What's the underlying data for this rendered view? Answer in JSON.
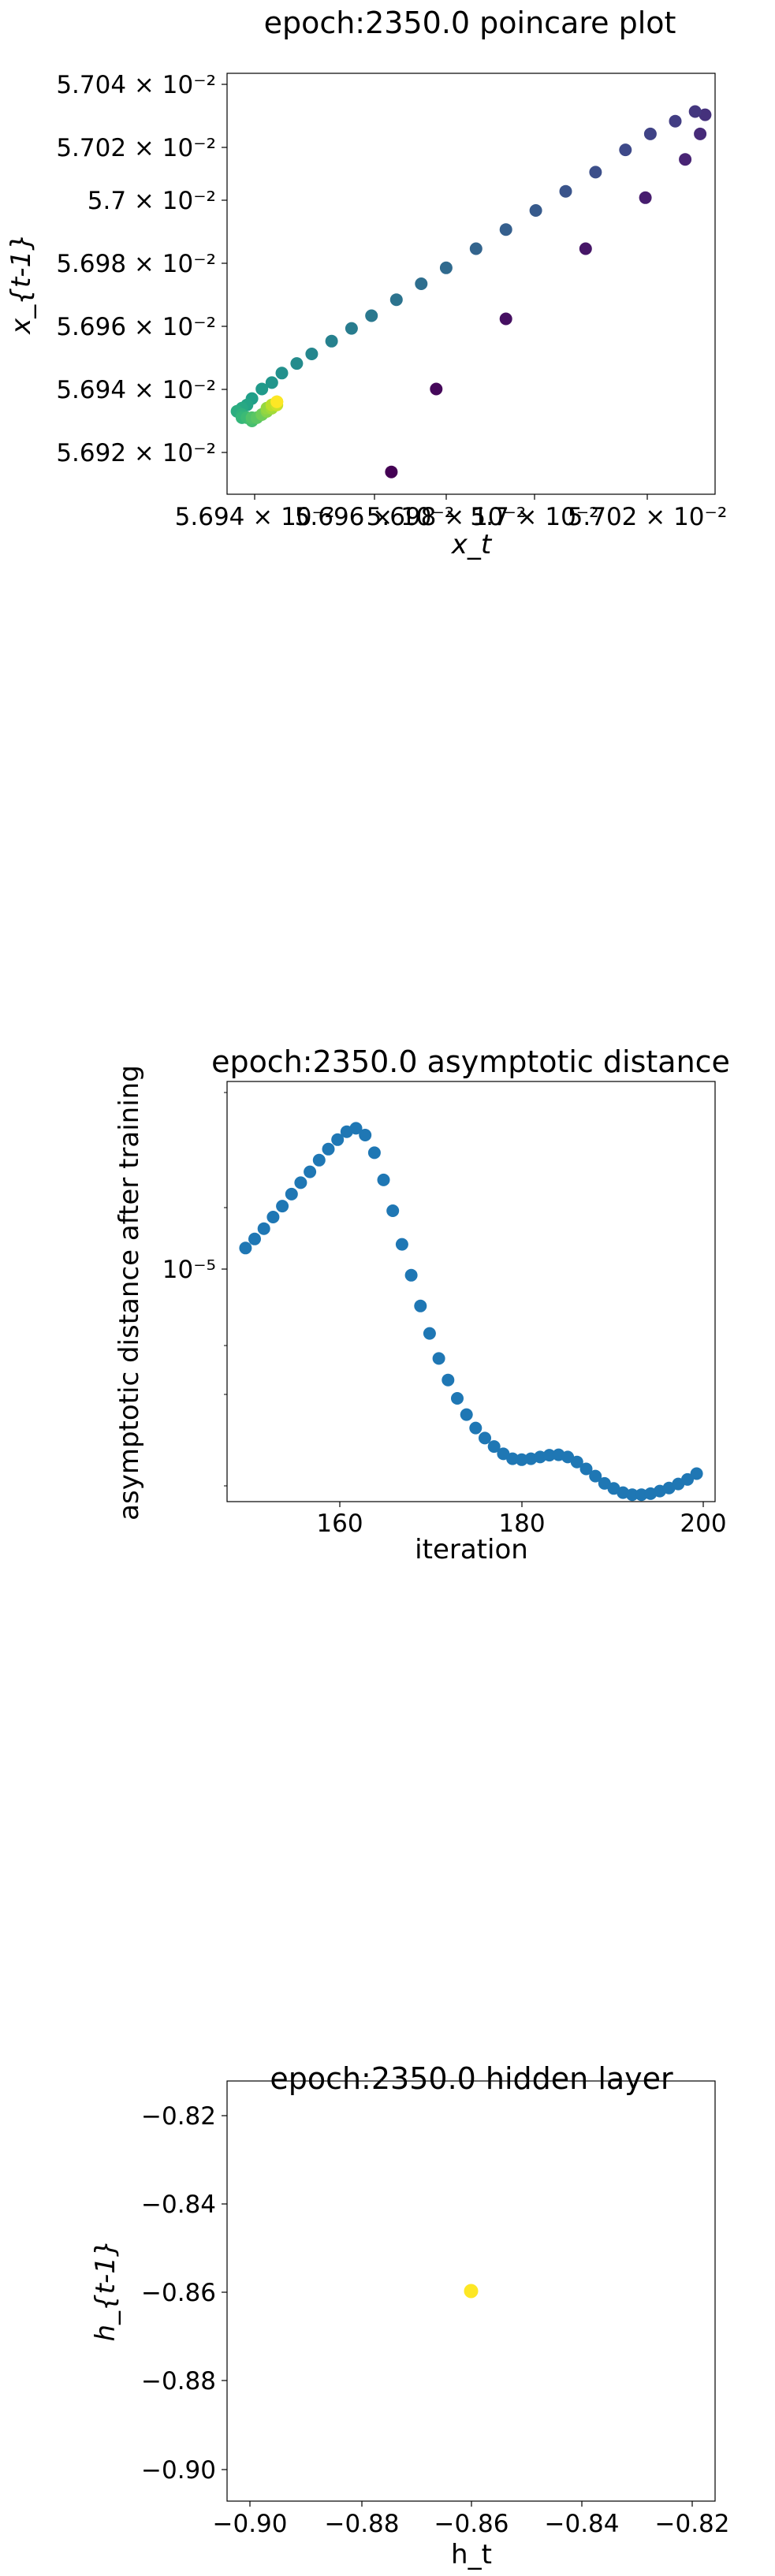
{
  "charts": [
    {
      "type": "scatter",
      "title": "epoch:2350.0 poincare plot",
      "xlabel": "x_t",
      "ylabel": "x_{t-1}",
      "colormap": "viridis",
      "xticks": [
        "5.694 × 10⁻²",
        "5.696 × 10⁻²",
        "5.698 × 10⁻²",
        "5.7 × 10⁻²",
        "5.702 × 10⁻²"
      ],
      "yticks": [
        "5.704 × 10⁻²",
        "5.702 × 10⁻²",
        "5.7 × 10⁻²",
        "5.698 × 10⁻²",
        "5.696 × 10⁻²",
        "5.694 × 10⁻²",
        "5.692 × 10⁻²"
      ]
    },
    {
      "type": "scatter",
      "title": "epoch:2350.0 asymptotic distance",
      "xlabel": "iteration",
      "ylabel": "asymptotic distance after training",
      "yscale": "log",
      "color": "#1f77b4",
      "xticks": [
        "160",
        "180",
        "200"
      ],
      "yticks": [
        "10⁻⁵"
      ]
    },
    {
      "type": "scatter",
      "title": "epoch:2350.0 hidden layer",
      "xlabel": "h_t",
      "ylabel": "h_{t-1}",
      "color": "#fde725",
      "xticks": [
        "−0.90",
        "−0.88",
        "−0.86",
        "−0.84",
        "−0.82"
      ],
      "yticks": [
        "−0.82",
        "−0.84",
        "−0.86",
        "−0.88",
        "−0.90"
      ]
    }
  ],
  "chart_data": [
    {
      "type": "scatter",
      "xlim": [
        0.056938,
        0.057036
      ],
      "ylim": [
        0.056914,
        0.057046
      ],
      "grid": false,
      "legend": "none",
      "points": [
        {
          "x": 0.056971,
          "y": 0.056921,
          "c": 0.0
        },
        {
          "x": 0.05698,
          "y": 0.056947,
          "c": 0.02
        },
        {
          "x": 0.056994,
          "y": 0.056969,
          "c": 0.04
        },
        {
          "x": 0.05701,
          "y": 0.056991,
          "c": 0.06
        },
        {
          "x": 0.057022,
          "y": 0.057007,
          "c": 0.08
        },
        {
          "x": 0.05703,
          "y": 0.057019,
          "c": 0.1
        },
        {
          "x": 0.057033,
          "y": 0.057027,
          "c": 0.12
        },
        {
          "x": 0.057034,
          "y": 0.057033,
          "c": 0.14
        },
        {
          "x": 0.057032,
          "y": 0.057034,
          "c": 0.16
        },
        {
          "x": 0.057028,
          "y": 0.057031,
          "c": 0.18
        },
        {
          "x": 0.057023,
          "y": 0.057027,
          "c": 0.2
        },
        {
          "x": 0.057018,
          "y": 0.057022,
          "c": 0.22
        },
        {
          "x": 0.057012,
          "y": 0.057015,
          "c": 0.24
        },
        {
          "x": 0.057006,
          "y": 0.057009,
          "c": 0.26
        },
        {
          "x": 0.057,
          "y": 0.057003,
          "c": 0.28
        },
        {
          "x": 0.056994,
          "y": 0.056997,
          "c": 0.3
        },
        {
          "x": 0.056988,
          "y": 0.056991,
          "c": 0.32
        },
        {
          "x": 0.056982,
          "y": 0.056985,
          "c": 0.34
        },
        {
          "x": 0.056977,
          "y": 0.05698,
          "c": 0.36
        },
        {
          "x": 0.056972,
          "y": 0.056975,
          "c": 0.38
        },
        {
          "x": 0.056967,
          "y": 0.05697,
          "c": 0.4
        },
        {
          "x": 0.056963,
          "y": 0.056966,
          "c": 0.42
        },
        {
          "x": 0.056959,
          "y": 0.056962,
          "c": 0.44
        },
        {
          "x": 0.056955,
          "y": 0.056958,
          "c": 0.46
        },
        {
          "x": 0.056952,
          "y": 0.056955,
          "c": 0.48
        },
        {
          "x": 0.056949,
          "y": 0.056952,
          "c": 0.5
        },
        {
          "x": 0.056947,
          "y": 0.056949,
          "c": 0.52
        },
        {
          "x": 0.056945,
          "y": 0.056947,
          "c": 0.54
        },
        {
          "x": 0.056943,
          "y": 0.056944,
          "c": 0.56
        },
        {
          "x": 0.056942,
          "y": 0.056942,
          "c": 0.58
        },
        {
          "x": 0.056941,
          "y": 0.056941,
          "c": 0.6
        },
        {
          "x": 0.05694,
          "y": 0.05694,
          "c": 0.62
        },
        {
          "x": 0.056941,
          "y": 0.056939,
          "c": 0.64
        },
        {
          "x": 0.056941,
          "y": 0.056938,
          "c": 0.66
        },
        {
          "x": 0.056942,
          "y": 0.056938,
          "c": 0.68
        },
        {
          "x": 0.056943,
          "y": 0.056937,
          "c": 0.7
        },
        {
          "x": 0.056943,
          "y": 0.056938,
          "c": 0.72
        },
        {
          "x": 0.056944,
          "y": 0.056938,
          "c": 0.74
        },
        {
          "x": 0.056945,
          "y": 0.056939,
          "c": 0.76
        },
        {
          "x": 0.056945,
          "y": 0.056939,
          "c": 0.78
        },
        {
          "x": 0.056946,
          "y": 0.05694,
          "c": 0.8
        },
        {
          "x": 0.056946,
          "y": 0.05694,
          "c": 0.82
        },
        {
          "x": 0.056946,
          "y": 0.056941,
          "c": 0.84
        },
        {
          "x": 0.056947,
          "y": 0.056941,
          "c": 0.86
        },
        {
          "x": 0.056947,
          "y": 0.056942,
          "c": 0.88
        },
        {
          "x": 0.056947,
          "y": 0.056942,
          "c": 0.9
        },
        {
          "x": 0.056948,
          "y": 0.056942,
          "c": 0.92
        },
        {
          "x": 0.056948,
          "y": 0.056943,
          "c": 0.94
        },
        {
          "x": 0.056948,
          "y": 0.056943,
          "c": 0.96
        },
        {
          "x": 0.056948,
          "y": 0.056943,
          "c": 1.0
        }
      ]
    },
    {
      "type": "scatter",
      "xlim": [
        148,
        201
      ],
      "ylim": [
        4.35e-06,
        2.6e-05
      ],
      "yscale": "log",
      "grid": false,
      "legend": "none",
      "x": [
        150,
        151,
        152,
        153,
        154,
        155,
        156,
        157,
        158,
        159,
        160,
        161,
        162,
        163,
        164,
        165,
        166,
        167,
        168,
        169,
        170,
        171,
        172,
        173,
        174,
        175,
        176,
        177,
        178,
        179,
        180,
        181,
        182,
        183,
        184,
        185,
        186,
        187,
        188,
        189,
        190,
        191,
        192,
        193,
        194,
        195,
        196,
        197,
        198,
        199
      ],
      "y": [
        1.28e-05,
        1.33e-05,
        1.39e-05,
        1.46e-05,
        1.53e-05,
        1.61e-05,
        1.69e-05,
        1.77e-05,
        1.86e-05,
        1.95e-05,
        2.03e-05,
        2.1e-05,
        2.13e-05,
        2.07e-05,
        1.92e-05,
        1.71e-05,
        1.5e-05,
        1.3e-05,
        1.14e-05,
        1e-05,
        8.9e-06,
        8e-06,
        7.3e-06,
        6.75e-06,
        6.3e-06,
        5.95e-06,
        5.7e-06,
        5.5e-06,
        5.33e-06,
        5.22e-06,
        5.2e-06,
        5.22e-06,
        5.26e-06,
        5.3e-06,
        5.31e-06,
        5.26e-06,
        5.15e-06,
        5e-06,
        4.85e-06,
        4.7e-06,
        4.6e-06,
        4.52e-06,
        4.48e-06,
        4.48e-06,
        4.5e-06,
        4.55e-06,
        4.61e-06,
        4.69e-06,
        4.78e-06,
        4.9e-06
      ]
    },
    {
      "type": "scatter",
      "xlim": [
        -0.9075,
        -0.8125
      ],
      "ylim": [
        -0.9075,
        -0.8125
      ],
      "grid": false,
      "legend": "none",
      "x": [
        -0.86
      ],
      "y": [
        -0.86
      ]
    }
  ]
}
